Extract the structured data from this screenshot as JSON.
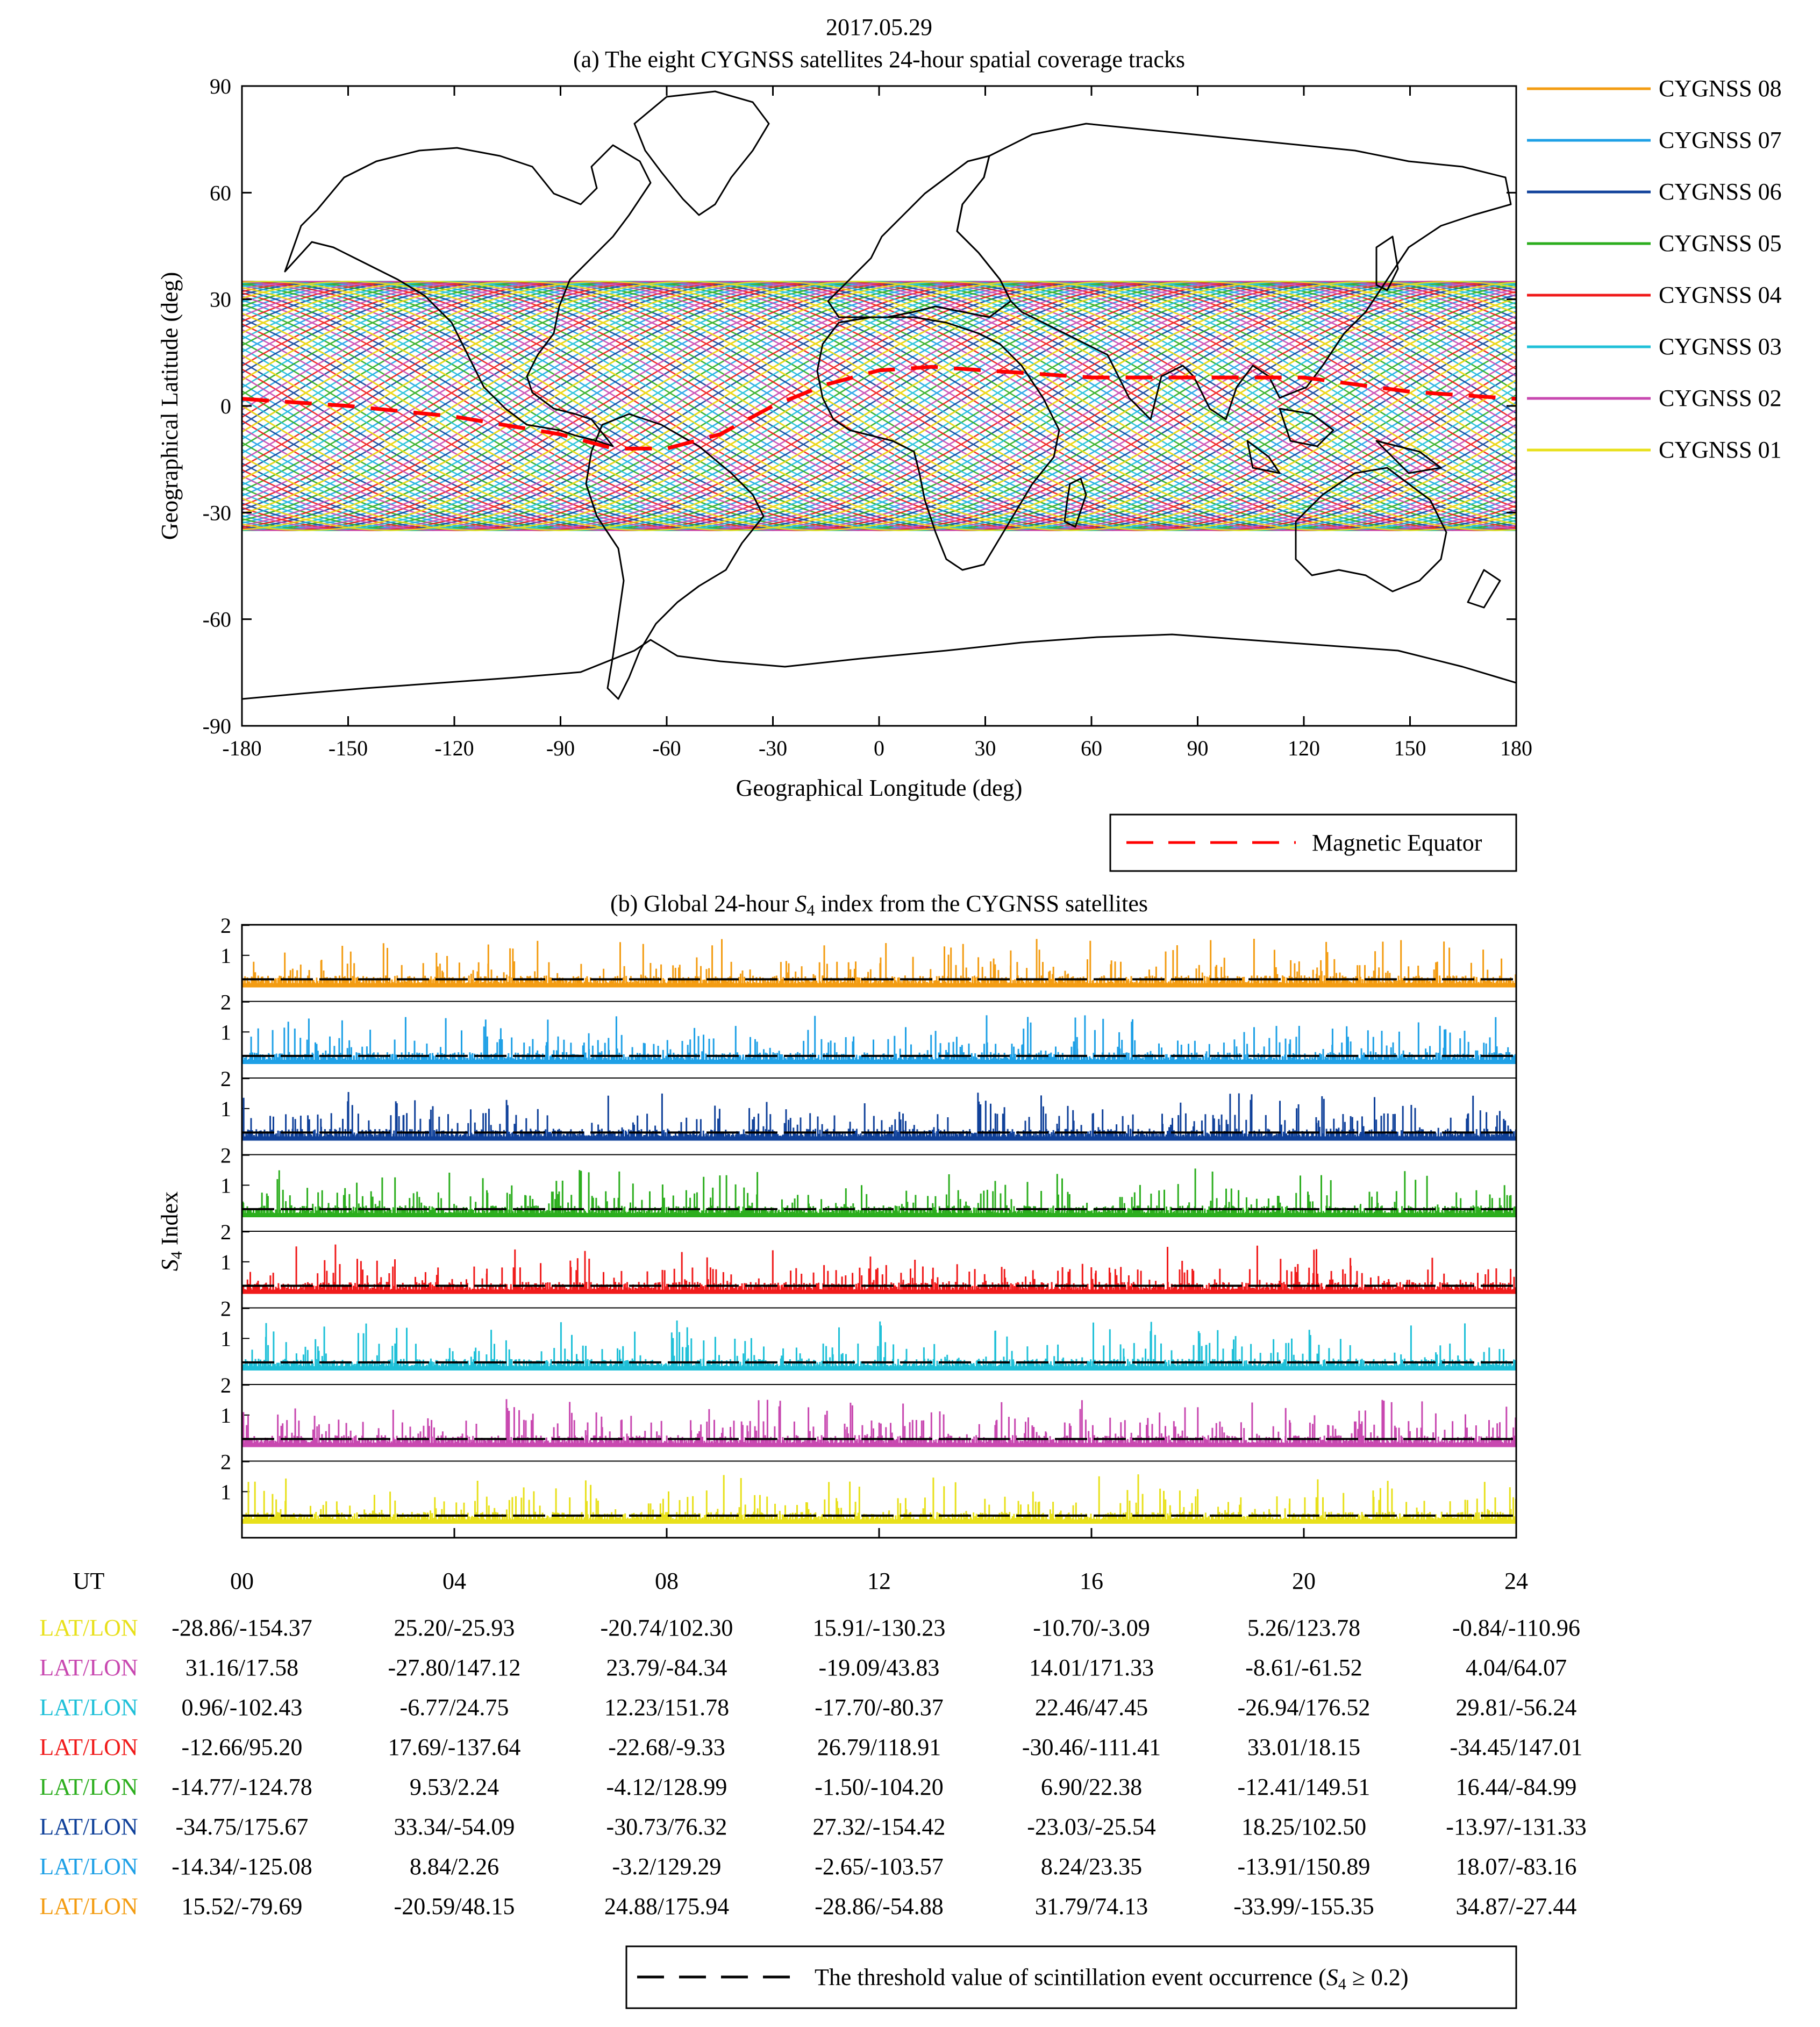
{
  "date": "2017.05.29",
  "colors": {
    "CYGNSS 08": "#f39c12",
    "CYGNSS 07": "#1ea0e6",
    "CYGNSS 06": "#10419a",
    "CYGNSS 05": "#2cae1e",
    "CYGNSS 04": "#f01a1a",
    "CYGNSS 03": "#1fc0d8",
    "CYGNSS 02": "#c848b0",
    "CYGNSS 01": "#e8e01a",
    "magnetic_equator": "#ff0000",
    "threshold": "#000000"
  },
  "chart_data": [
    {
      "type": "line",
      "panel": "a",
      "title": "(a) The eight CYGNSS satellites 24-hour spatial coverage tracks",
      "xlabel": "Geographical Longitude (deg)",
      "ylabel": "Geographical Latitude (deg)",
      "xlim": [
        -180,
        180
      ],
      "ylim": [
        -90,
        90
      ],
      "xticks": [
        "-180",
        "-150",
        "-120",
        "-90",
        "-60",
        "-30",
        "0",
        "30",
        "60",
        "90",
        "120",
        "150",
        "180"
      ],
      "yticks": [
        "90",
        "60",
        "30",
        "0",
        "-30",
        "-60",
        "-90"
      ],
      "coverage_lat_range": [
        -35,
        35
      ],
      "series": [
        {
          "name": "CYGNSS 08"
        },
        {
          "name": "CYGNSS 07"
        },
        {
          "name": "CYGNSS 06"
        },
        {
          "name": "CYGNSS 05"
        },
        {
          "name": "CYGNSS 04"
        },
        {
          "name": "CYGNSS 03"
        },
        {
          "name": "CYGNSS 02"
        },
        {
          "name": "CYGNSS 01"
        }
      ],
      "legend_extra": "Magnetic Equator",
      "magnetic_equator": {
        "lon": [
          -180,
          -150,
          -120,
          -90,
          -75,
          -60,
          -45,
          -30,
          -15,
          0,
          15,
          30,
          45,
          60,
          75,
          90,
          105,
          120,
          135,
          150,
          165,
          180
        ],
        "lat": [
          2,
          0,
          -3,
          -8,
          -12,
          -12,
          -8,
          0,
          6,
          10,
          11,
          10,
          9,
          8,
          8,
          8,
          8,
          8,
          6,
          4,
          3,
          2
        ]
      }
    },
    {
      "type": "bar",
      "panel": "b",
      "title_prefix": "(b) Global 24-hour ",
      "title_var": "S",
      "title_sub": "4",
      "title_suffix": " index from the CYGNSS satellites",
      "ylabel_var": "S",
      "ylabel_sub": "4",
      "ylabel_suffix": " Index",
      "xlabel": "UT",
      "xlim": [
        0,
        24
      ],
      "xticks": [
        "00",
        "04",
        "08",
        "12",
        "16",
        "20",
        "24"
      ],
      "row_yticks": [
        "2",
        "1"
      ],
      "row_ylim": [
        0,
        2.2
      ],
      "threshold": 0.2,
      "rows": [
        "CYGNSS 08",
        "CYGNSS 07",
        "CYGNSS 06",
        "CYGNSS 05",
        "CYGNSS 04",
        "CYGNSS 03",
        "CYGNSS 02",
        "CYGNSS 01"
      ]
    }
  ],
  "latlon_table": {
    "label": "LAT/LON",
    "rows": [
      {
        "color_key": "CYGNSS 01",
        "values": [
          "-28.86/-154.37",
          "25.20/-25.93",
          "-20.74/102.30",
          "15.91/-130.23",
          "-10.70/-3.09",
          "5.26/123.78",
          "-0.84/-110.96"
        ]
      },
      {
        "color_key": "CYGNSS 02",
        "values": [
          "31.16/17.58",
          "-27.80/147.12",
          "23.79/-84.34",
          "-19.09/43.83",
          "14.01/171.33",
          "-8.61/-61.52",
          "4.04/64.07"
        ]
      },
      {
        "color_key": "CYGNSS 03",
        "values": [
          "0.96/-102.43",
          "-6.77/24.75",
          "12.23/151.78",
          "-17.70/-80.37",
          "22.46/47.45",
          "-26.94/176.52",
          "29.81/-56.24"
        ]
      },
      {
        "color_key": "CYGNSS 04",
        "values": [
          "-12.66/95.20",
          "17.69/-137.64",
          "-22.68/-9.33",
          "26.79/118.91",
          "-30.46/-111.41",
          "33.01/18.15",
          "-34.45/147.01"
        ]
      },
      {
        "color_key": "CYGNSS 05",
        "values": [
          "-14.77/-124.78",
          "9.53/2.24",
          "-4.12/128.99",
          "-1.50/-104.20",
          "6.90/22.38",
          "-12.41/149.51",
          "16.44/-84.99"
        ]
      },
      {
        "color_key": "CYGNSS 06",
        "values": [
          "-34.75/175.67",
          "33.34/-54.09",
          "-30.73/76.32",
          "27.32/-154.42",
          "-23.03/-25.54",
          "18.25/102.50",
          "-13.97/-131.33"
        ]
      },
      {
        "color_key": "CYGNSS 07",
        "values": [
          "-14.34/-125.08",
          "8.84/2.26",
          "-3.2/129.29",
          "-2.65/-103.57",
          "8.24/23.35",
          "-13.91/150.89",
          "18.07/-83.16"
        ]
      },
      {
        "color_key": "CYGNSS 08",
        "values": [
          "15.52/-79.69",
          "-20.59/48.15",
          "24.88/175.94",
          "-28.86/-54.88",
          "31.79/74.13",
          "-33.99/-155.35",
          "34.87/-27.44"
        ]
      }
    ]
  },
  "threshold_legend": {
    "prefix": "The threshold value of scintillation event occurrence (",
    "var": "S",
    "sub": "4",
    "suffix": " ≥ 0.2)"
  }
}
